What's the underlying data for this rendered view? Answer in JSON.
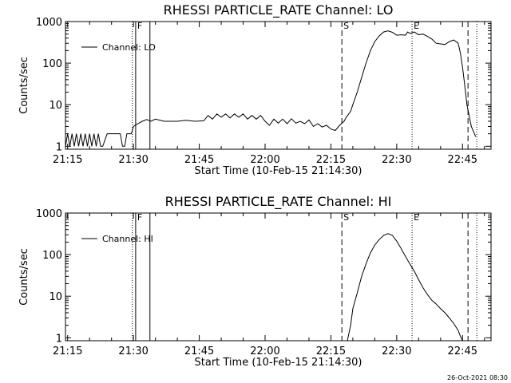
{
  "footer": {
    "timestamp": "26-Oct-2021 08:30"
  },
  "chart_data": [
    {
      "type": "line",
      "title": "RHESSI PARTICLE_RATE Channel: LO",
      "xlabel": "Start Time (10-Feb-15 21:14:30)",
      "ylabel": "Counts/sec",
      "xlim": [
        "21:14:30",
        "22:51:30"
      ],
      "ylim": [
        0.85,
        1000
      ],
      "yscale": "log",
      "xticks": [
        "21:15",
        "21:30",
        "21:45",
        "22:00",
        "22:15",
        "22:30",
        "22:45"
      ],
      "yticks": [
        "1",
        "10",
        "100",
        "1000"
      ],
      "grid": false,
      "legend": {
        "placement": "top-left",
        "entries": [
          "Channel: LO"
        ]
      },
      "markers": [
        {
          "label": "F",
          "time": "21:30:30",
          "style": "solid"
        },
        {
          "label": "",
          "time": "21:29:45",
          "style": "dotted"
        },
        {
          "label": "",
          "time": "21:33:45",
          "style": "solid"
        },
        {
          "label": "S",
          "time": "22:17:30",
          "style": "dashed"
        },
        {
          "label": "E",
          "time": "22:33:30",
          "style": "dotted"
        },
        {
          "label": "",
          "time": "22:46:15",
          "style": "dashed"
        },
        {
          "label": "",
          "time": "22:48:15",
          "style": "dotted"
        }
      ],
      "series": [
        {
          "name": "Channel: LO",
          "points": [
            [
              "21:14:30",
              1
            ],
            [
              "21:15:00",
              2
            ],
            [
              "21:15:30",
              1
            ],
            [
              "21:16:00",
              2
            ],
            [
              "21:16:30",
              1
            ],
            [
              "21:17:00",
              2
            ],
            [
              "21:17:30",
              1
            ],
            [
              "21:18:00",
              2
            ],
            [
              "21:18:30",
              1
            ],
            [
              "21:19:00",
              2
            ],
            [
              "21:19:30",
              1
            ],
            [
              "21:20:00",
              2
            ],
            [
              "21:20:30",
              1
            ],
            [
              "21:21:00",
              2
            ],
            [
              "21:21:30",
              1
            ],
            [
              "21:22:00",
              2
            ],
            [
              "21:22:30",
              1
            ],
            [
              "21:23:00",
              1
            ],
            [
              "21:24:00",
              2
            ],
            [
              "21:27:00",
              2
            ],
            [
              "21:27:30",
              1
            ],
            [
              "21:28:00",
              1
            ],
            [
              "21:28:30",
              2
            ],
            [
              "21:29:30",
              2
            ],
            [
              "21:30:00",
              3
            ],
            [
              "21:31:00",
              3.5
            ],
            [
              "21:32:00",
              4
            ],
            [
              "21:33:00",
              4.4
            ],
            [
              "21:34:00",
              4
            ],
            [
              "21:35:00",
              4.5
            ],
            [
              "21:37:00",
              4
            ],
            [
              "21:40:00",
              4
            ],
            [
              "21:42:00",
              4.2
            ],
            [
              "21:44:00",
              4
            ],
            [
              "21:46:00",
              4.1
            ],
            [
              "21:47:00",
              5.5
            ],
            [
              "21:48:00",
              4.5
            ],
            [
              "21:49:00",
              6
            ],
            [
              "21:50:00",
              5
            ],
            [
              "21:51:00",
              6
            ],
            [
              "21:52:00",
              4.8
            ],
            [
              "21:53:00",
              6
            ],
            [
              "21:54:00",
              5
            ],
            [
              "21:55:00",
              6
            ],
            [
              "21:56:00",
              4.5
            ],
            [
              "21:57:00",
              5.5
            ],
            [
              "21:58:00",
              4.5
            ],
            [
              "21:59:00",
              5.5
            ],
            [
              "22:00:00",
              4
            ],
            [
              "22:01:00",
              3.2
            ],
            [
              "22:02:00",
              4.5
            ],
            [
              "22:03:00",
              3.6
            ],
            [
              "22:04:00",
              4.5
            ],
            [
              "22:05:00",
              3.5
            ],
            [
              "22:06:00",
              4.6
            ],
            [
              "22:07:00",
              3.6
            ],
            [
              "22:08:00",
              4
            ],
            [
              "22:09:00",
              3.5
            ],
            [
              "22:10:00",
              4.3
            ],
            [
              "22:11:00",
              3
            ],
            [
              "22:12:00",
              3.5
            ],
            [
              "22:13:00",
              2.9
            ],
            [
              "22:14:00",
              3.2
            ],
            [
              "22:15:00",
              2.6
            ],
            [
              "22:16:00",
              2.4
            ],
            [
              "22:17:00",
              3.2
            ],
            [
              "22:18:00",
              4
            ],
            [
              "22:18:30",
              5
            ],
            [
              "22:19:30",
              7
            ],
            [
              "22:20:00",
              10
            ],
            [
              "22:21:00",
              20
            ],
            [
              "22:22:00",
              45
            ],
            [
              "22:23:00",
              100
            ],
            [
              "22:24:00",
              200
            ],
            [
              "22:25:00",
              330
            ],
            [
              "22:26:00",
              450
            ],
            [
              "22:27:00",
              560
            ],
            [
              "22:28:00",
              600
            ],
            [
              "22:29:00",
              550
            ],
            [
              "22:30:00",
              470
            ],
            [
              "22:31:00",
              480
            ],
            [
              "22:32:00",
              470
            ],
            [
              "22:32:30",
              560
            ],
            [
              "22:33:00",
              520
            ],
            [
              "22:34:00",
              560
            ],
            [
              "22:35:00",
              480
            ],
            [
              "22:36:00",
              500
            ],
            [
              "22:37:00",
              440
            ],
            [
              "22:38:00",
              380
            ],
            [
              "22:39:00",
              300
            ],
            [
              "22:40:00",
              290
            ],
            [
              "22:41:00",
              280
            ],
            [
              "22:42:00",
              330
            ],
            [
              "22:43:00",
              360
            ],
            [
              "22:44:00",
              300
            ],
            [
              "22:44:30",
              180
            ],
            [
              "22:45:00",
              80
            ],
            [
              "22:45:30",
              30
            ],
            [
              "22:46:00",
              10
            ],
            [
              "22:47:00",
              3
            ],
            [
              "22:48:00",
              1.7
            ]
          ]
        }
      ]
    },
    {
      "type": "line",
      "title": "RHESSI PARTICLE_RATE Channel: HI",
      "xlabel": "Start Time (10-Feb-15 21:14:30)",
      "ylabel": "Counts/sec",
      "xlim": [
        "21:14:30",
        "22:51:30"
      ],
      "ylim": [
        0.85,
        1000
      ],
      "yscale": "log",
      "xticks": [
        "21:15",
        "21:30",
        "21:45",
        "22:00",
        "22:15",
        "22:30",
        "22:45"
      ],
      "yticks": [
        "1",
        "10",
        "100",
        "1000"
      ],
      "grid": false,
      "legend": {
        "placement": "top-left",
        "entries": [
          "Channel: HI"
        ]
      },
      "markers": [
        {
          "label": "F",
          "time": "21:30:30",
          "style": "solid"
        },
        {
          "label": "",
          "time": "21:29:45",
          "style": "dotted"
        },
        {
          "label": "",
          "time": "21:33:45",
          "style": "solid"
        },
        {
          "label": "S",
          "time": "22:17:30",
          "style": "dashed"
        },
        {
          "label": "E",
          "time": "22:33:30",
          "style": "dotted"
        },
        {
          "label": "",
          "time": "22:46:15",
          "style": "dashed"
        },
        {
          "label": "",
          "time": "22:48:15",
          "style": "dotted"
        }
      ],
      "series": [
        {
          "name": "Channel: HI",
          "points": [
            [
              "22:18:45",
              0.85
            ],
            [
              "22:19:30",
              2
            ],
            [
              "22:20:00",
              5
            ],
            [
              "22:21:00",
              12
            ],
            [
              "22:22:00",
              30
            ],
            [
              "22:23:00",
              60
            ],
            [
              "22:24:00",
              110
            ],
            [
              "22:25:00",
              170
            ],
            [
              "22:26:00",
              230
            ],
            [
              "22:27:00",
              290
            ],
            [
              "22:28:00",
              320
            ],
            [
              "22:29:00",
              290
            ],
            [
              "22:30:00",
              210
            ],
            [
              "22:31:00",
              140
            ],
            [
              "22:32:00",
              90
            ],
            [
              "22:33:00",
              60
            ],
            [
              "22:34:00",
              40
            ],
            [
              "22:35:00",
              25
            ],
            [
              "22:36:00",
              16
            ],
            [
              "22:37:00",
              11
            ],
            [
              "22:38:00",
              8
            ],
            [
              "22:39:00",
              6.5
            ],
            [
              "22:40:00",
              5
            ],
            [
              "22:41:00",
              4
            ],
            [
              "22:42:00",
              3
            ],
            [
              "22:43:00",
              2.2
            ],
            [
              "22:44:00",
              1.5
            ],
            [
              "22:44:30",
              1.1
            ],
            [
              "22:45:00",
              0.85
            ]
          ]
        }
      ]
    }
  ]
}
